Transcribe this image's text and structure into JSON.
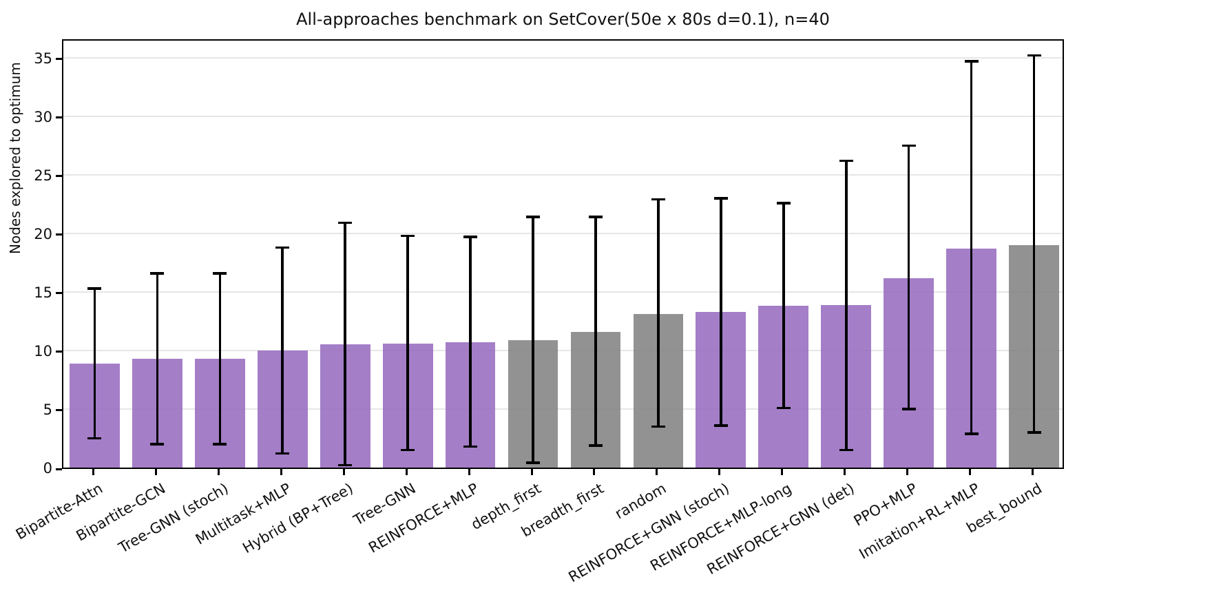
{
  "chart_data": {
    "type": "bar",
    "title": "All-approaches benchmark on SetCover(50e x 80s d=0.1), n=40",
    "xlabel": "",
    "ylabel": "Nodes explored to optimum",
    "categories": [
      "Bipartite-Attn",
      "Bipartite-GCN",
      "Tree-GNN (stoch)",
      "Multitask+MLP",
      "Hybrid (BP+Tree)",
      "Tree-GNN",
      "REINFORCE+MLP",
      "depth_first",
      "breadth_first",
      "random",
      "REINFORCE+GNN (stoch)",
      "REINFORCE+MLP-long",
      "REINFORCE+GNN (det)",
      "PPO+MLP",
      "Imitation+RL+MLP",
      "best_bound"
    ],
    "values": [
      8.9,
      9.3,
      9.3,
      10.0,
      10.5,
      10.6,
      10.7,
      10.9,
      11.6,
      13.1,
      13.3,
      13.8,
      13.9,
      16.2,
      18.7,
      19.0
    ],
    "error_low": [
      2.5,
      2.0,
      2.0,
      1.2,
      0.2,
      1.5,
      1.8,
      0.4,
      1.9,
      3.5,
      3.6,
      5.1,
      1.5,
      5.0,
      2.9,
      3.0
    ],
    "error_high": [
      15.3,
      16.6,
      16.6,
      18.8,
      20.9,
      19.8,
      19.7,
      21.4,
      21.4,
      22.9,
      23.0,
      22.6,
      26.2,
      27.5,
      34.7,
      35.2
    ],
    "groups": [
      "learned",
      "learned",
      "learned",
      "learned",
      "learned",
      "learned",
      "learned",
      "baseline",
      "baseline",
      "baseline",
      "learned",
      "learned",
      "learned",
      "learned",
      "learned",
      "baseline"
    ],
    "colors": {
      "learned_bar": "rgba(148,103,189,0.85)",
      "baseline_bar": "rgba(127,127,127,0.85)",
      "error_bar": "#000000",
      "gridline": "#e6e6e6"
    },
    "yticks": [
      0,
      5,
      10,
      15,
      20,
      25,
      30,
      35
    ],
    "ylim": [
      0,
      36.7
    ],
    "grid": "horizontal",
    "legend": "none",
    "bar_width_fraction": 0.8,
    "xtick_rotation_deg": 30
  }
}
